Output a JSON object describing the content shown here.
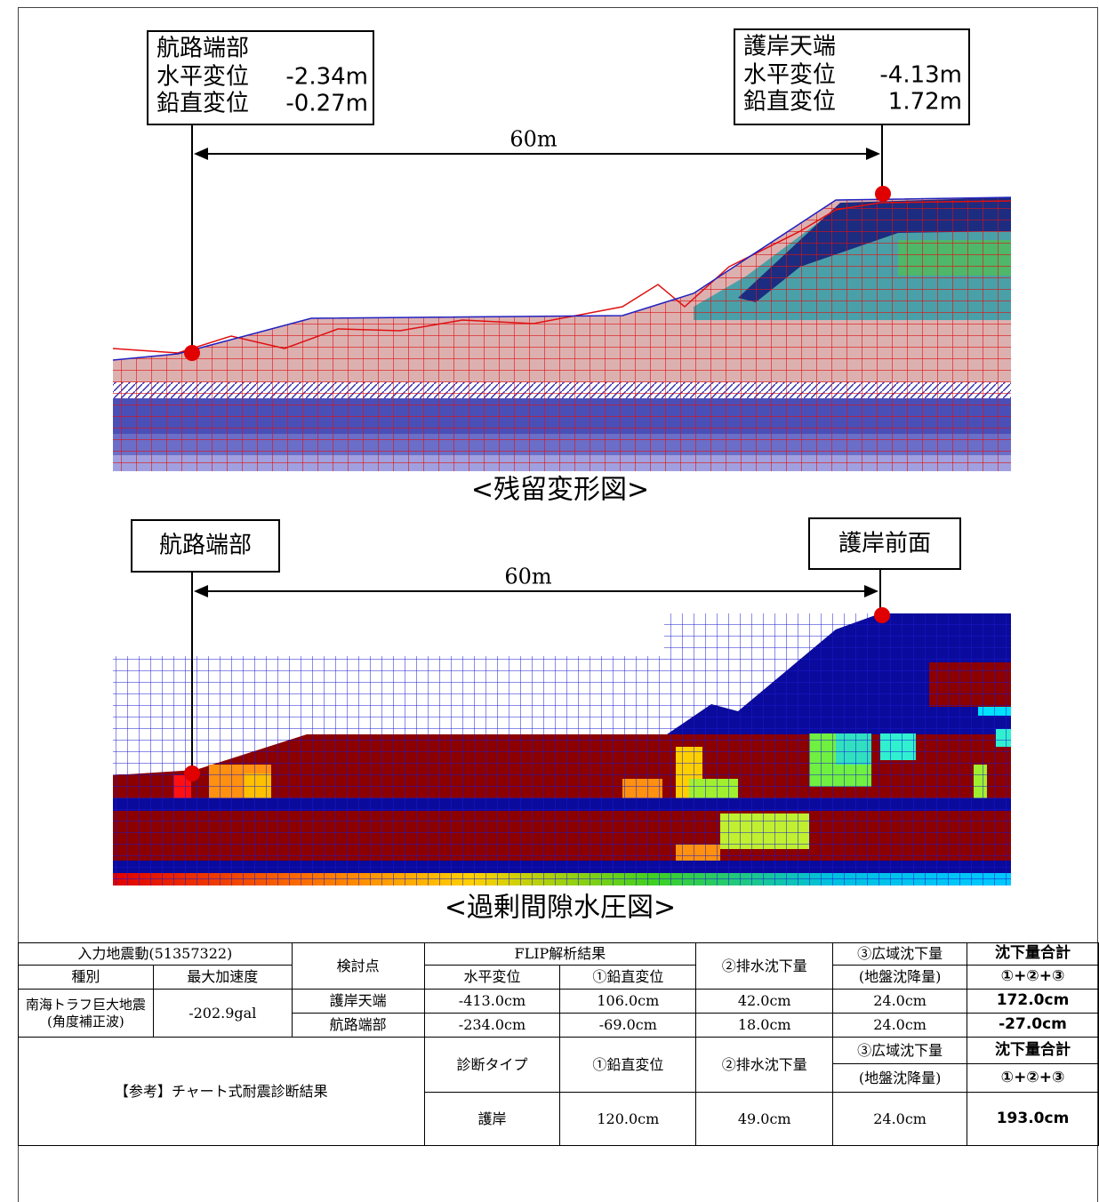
{
  "figure1": {
    "caption": "<残留変形図>",
    "distance": "60m",
    "left_callout": {
      "title": "航路端部",
      "lines": [
        {
          "label": "水平変位",
          "value": "-2.34m"
        },
        {
          "label": "鉛直変位",
          "value": "-0.27m"
        }
      ]
    },
    "right_callout": {
      "title": "護岸天端",
      "lines": [
        {
          "label": "水平変位",
          "value": "-4.13m"
        },
        {
          "label": "鉛直変位",
          "value": "1.72m"
        }
      ]
    }
  },
  "figure2": {
    "caption": "<過剰間隙水圧図>",
    "distance": "60m",
    "left_callout": "航路端部",
    "right_callout": "護岸前面"
  },
  "table": {
    "header": {
      "input_motion": "入力地震動(51357322)",
      "check_point": "検討点",
      "flip": "FLIP解析結果",
      "drain": "②排水沈下量",
      "regional": "③広域沈下量",
      "total": "沈下量合計",
      "type": "種別",
      "max_acc": "最大加速度",
      "horizontal": "水平変位",
      "vertical": "①鉛直変位",
      "regional_sub": "(地盤沈降量)",
      "total_sub": "①+②+③"
    },
    "motion": [
      "南海トラフ巨大地震",
      "(角度補正波)"
    ],
    "max_acc": "-202.9gal",
    "rows": [
      [
        "護岸天端",
        "-413.0cm",
        "106.0cm",
        "42.0cm",
        "24.0cm",
        "172.0cm"
      ],
      [
        "航路端部",
        "-234.0cm",
        "-69.0cm",
        "18.0cm",
        "24.0cm",
        "-27.0cm"
      ]
    ],
    "reference": {
      "title": "【参考】チャート式耐震診断結果",
      "header": [
        "診断タイプ",
        "①鉛直変位",
        "②排水沈下量",
        "③広域沈下量",
        "沈下量合計",
        "(地盤沈降量)",
        "①+②+③"
      ],
      "row": [
        "護岸",
        "120.0cm",
        "49.0cm",
        "24.0cm",
        "193.0cm"
      ]
    }
  }
}
